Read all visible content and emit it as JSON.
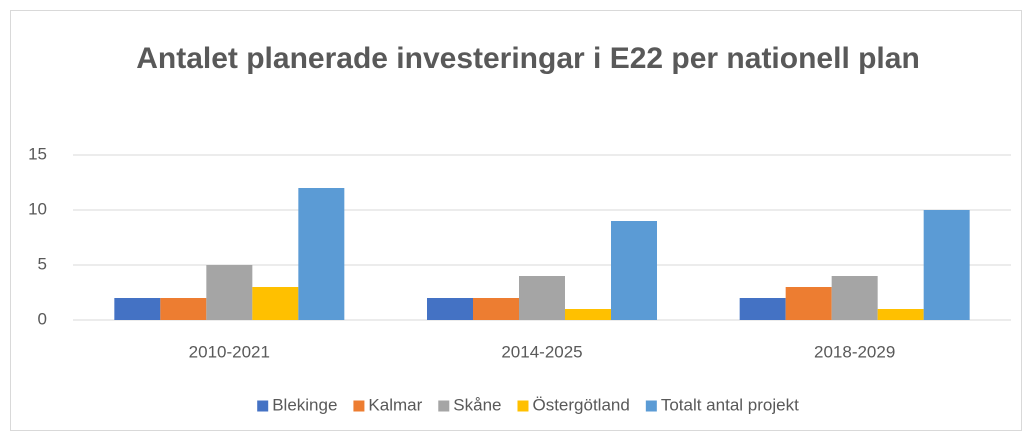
{
  "chart_data": {
    "type": "bar",
    "title": "Antalet planerade investeringar i E22 per nationell plan",
    "categories": [
      "2010-2021",
      "2014-2025",
      "2018-2029"
    ],
    "series": [
      {
        "name": "Blekinge",
        "color": "#4472c4",
        "values": [
          2,
          2,
          2
        ]
      },
      {
        "name": "Kalmar",
        "color": "#ed7d31",
        "values": [
          2,
          2,
          3
        ]
      },
      {
        "name": "Skåne",
        "color": "#a5a5a5",
        "values": [
          5,
          4,
          4
        ]
      },
      {
        "name": "Östergötland",
        "color": "#ffc000",
        "values": [
          3,
          1,
          1
        ]
      },
      {
        "name": "Totalt antal projekt",
        "color": "#5b9bd5",
        "values": [
          12,
          9,
          10
        ]
      }
    ],
    "ylim": [
      0,
      15
    ],
    "yticks": [
      0,
      5,
      10,
      15
    ],
    "grid": true,
    "legend": "bottom"
  }
}
